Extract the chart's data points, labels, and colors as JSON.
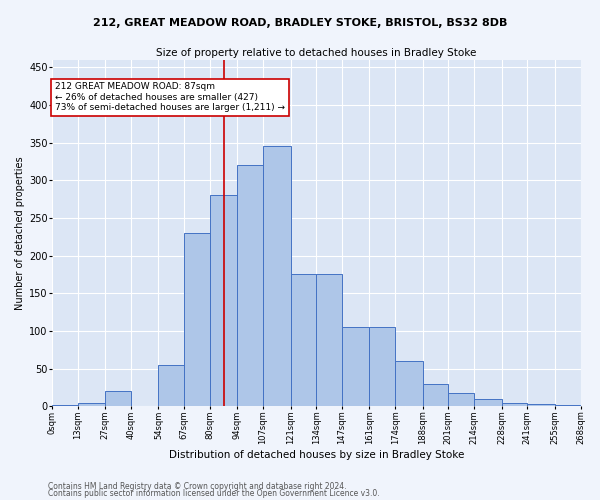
{
  "title1": "212, GREAT MEADOW ROAD, BRADLEY STOKE, BRISTOL, BS32 8DB",
  "title2": "Size of property relative to detached houses in Bradley Stoke",
  "xlabel": "Distribution of detached houses by size in Bradley Stoke",
  "ylabel": "Number of detached properties",
  "footer1": "Contains HM Land Registry data © Crown copyright and database right 2024.",
  "footer2": "Contains public sector information licensed under the Open Government Licence v3.0.",
  "annotation_line1": "212 GREAT MEADOW ROAD: 87sqm",
  "annotation_line2": "← 26% of detached houses are smaller (427)",
  "annotation_line3": "73% of semi-detached houses are larger (1,211) →",
  "property_size": 87,
  "bin_edges": [
    0,
    13,
    27,
    40,
    54,
    67,
    80,
    94,
    107,
    121,
    134,
    147,
    161,
    174,
    188,
    201,
    214,
    228,
    241,
    255,
    268
  ],
  "bar_heights": [
    2,
    5,
    20,
    0,
    55,
    230,
    280,
    320,
    345,
    175,
    175,
    105,
    105,
    60,
    30,
    18,
    10,
    5,
    3,
    2
  ],
  "bar_color": "#aec6e8",
  "bar_edge_color": "#4472c4",
  "vline_color": "#cc0000",
  "vline_x": 87,
  "annotation_box_color": "#ffffff",
  "annotation_box_edge": "#cc0000",
  "ylim": [
    0,
    460
  ],
  "yticks": [
    0,
    50,
    100,
    150,
    200,
    250,
    300,
    350,
    400,
    450
  ],
  "bg_color": "#dce6f5",
  "fig_color": "#f0f4fc",
  "grid_color": "#ffffff"
}
